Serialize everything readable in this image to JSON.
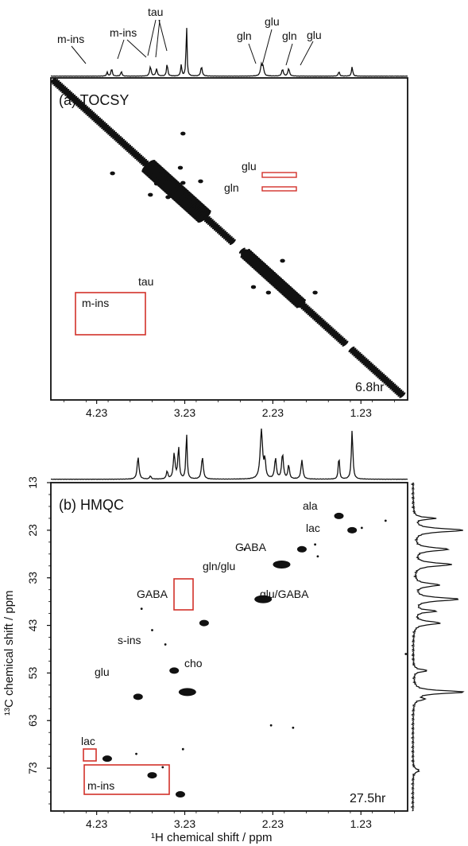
{
  "chart_data": [
    {
      "type": "scatter",
      "panel": "(a) TOCSY",
      "duration": "6.8hr",
      "x_axis": {
        "label": "",
        "ticks": [
          "4.23",
          "3.23",
          "2.23",
          "1.23"
        ],
        "reversed": true,
        "range": [
          4.75,
          0.7
        ]
      },
      "y_axis": {
        "label": "",
        "reversed": false,
        "range": [
          4.75,
          0.7
        ]
      },
      "diagonal": true,
      "annotations": [
        {
          "text": "m-ins",
          "x": 3.95,
          "y": 3.7
        },
        {
          "text": "tau",
          "x": 3.42,
          "y": 3.42
        },
        {
          "text": "glu",
          "x": 2.26,
          "y": 2.23
        },
        {
          "text": "gln",
          "x": 2.26,
          "y": 2.23
        }
      ],
      "top_spectrum_labels": [
        "m-ins",
        "m-ins",
        "tau",
        "gln",
        "glu",
        "gln",
        "glu"
      ],
      "cross_peaks": [
        {
          "x": 4.05,
          "y": 3.55
        },
        {
          "x": 3.62,
          "y": 3.28
        },
        {
          "x": 3.55,
          "y": 3.42
        },
        {
          "x": 3.28,
          "y": 3.62
        },
        {
          "x": 3.25,
          "y": 3.43
        },
        {
          "x": 3.42,
          "y": 3.25
        },
        {
          "x": 3.05,
          "y": 3.45
        },
        {
          "x": 2.45,
          "y": 2.12
        },
        {
          "x": 2.12,
          "y": 2.45
        },
        {
          "x": 2.28,
          "y": 2.05
        },
        {
          "x": 1.75,
          "y": 2.05
        },
        {
          "x": 3.25,
          "y": 4.05
        }
      ],
      "highlight_boxes": [
        {
          "label": "m-ins",
          "x_range": [
            4.05,
            3.28
          ],
          "y_range": [
            3.22,
            3.82
          ]
        },
        {
          "label": "glu",
          "x_range": [
            2.26,
            1.92
          ],
          "y_range": [
            2.18,
            2.24
          ]
        },
        {
          "label": "gln",
          "x_range": [
            2.26,
            1.92
          ],
          "y_range": [
            2.08,
            2.12
          ]
        }
      ]
    },
    {
      "type": "scatter",
      "panel": "(b) HMQC",
      "duration": "27.5hr",
      "x_axis": {
        "label": "¹H chemical shift / ppm",
        "ticks": [
          "4.23",
          "3.23",
          "2.23",
          "1.23"
        ],
        "reversed": true,
        "range": [
          4.75,
          0.7
        ]
      },
      "y_axis": {
        "label": "¹³C chemical shift / ppm",
        "ticks": [
          "13",
          "23",
          "33",
          "43",
          "53",
          "63",
          "73"
        ],
        "reversed": true,
        "range": [
          13,
          82
        ]
      },
      "peaks": [
        {
          "label": "ala",
          "x": 1.48,
          "y": 20.0
        },
        {
          "label": "lac",
          "x": 1.33,
          "y": 23.0
        },
        {
          "label": "GABA",
          "x": 1.9,
          "y": 27.0
        },
        {
          "label": "gln/glu",
          "x": 2.13,
          "y": 30.2
        },
        {
          "label": "glu/GABA",
          "x": 2.34,
          "y": 37.5
        },
        {
          "label": "GABA",
          "x": 3.01,
          "y": 42.5
        },
        {
          "label": "s-ins",
          "x": 3.35,
          "y": 52.5
        },
        {
          "label": "cho",
          "x": 3.2,
          "y": 57.0
        },
        {
          "label": "glu",
          "x": 3.76,
          "y": 58.0
        },
        {
          "label": "lac",
          "x": 4.11,
          "y": 71.0
        },
        {
          "label": "m-ins",
          "x": 3.6,
          "y": 74.5
        },
        {
          "label": "m-ins",
          "x": 3.28,
          "y": 78.5
        }
      ],
      "annotations": [
        {
          "text": "ala"
        },
        {
          "text": "lac"
        },
        {
          "text": "GABA"
        },
        {
          "text": "gln/glu"
        },
        {
          "text": "glu/GABA"
        },
        {
          "text": "GABA"
        },
        {
          "text": "s-ins"
        },
        {
          "text": "cho"
        },
        {
          "text": "glu"
        },
        {
          "text": "lac"
        },
        {
          "text": "m-ins"
        }
      ]
    }
  ]
}
